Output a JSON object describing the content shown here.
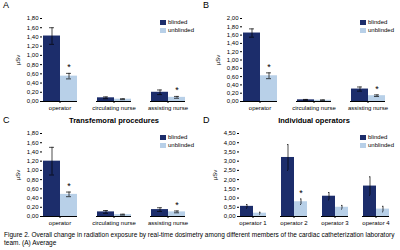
{
  "chart_data": [
    {
      "type": "bar",
      "panel_label": "A",
      "categories": [
        "operator",
        "circulating nurse",
        "assisting nurse"
      ],
      "series": [
        {
          "name": "blinded",
          "color": "#1c2d6b",
          "values": [
            1.42,
            0.08,
            0.2
          ],
          "errors": [
            0.18,
            0.02,
            0.05
          ]
        },
        {
          "name": "unblinded",
          "color": "#b8d0e8",
          "values": [
            0.55,
            0.05,
            0.09
          ],
          "errors": [
            0.06,
            0.01,
            0.02
          ]
        }
      ],
      "annotations": [
        {
          "category": "operator",
          "series": "unblinded",
          "text": "*"
        },
        {
          "category": "assisting nurse",
          "series": "unblinded",
          "text": "*"
        }
      ],
      "ylabel": "μSv",
      "ylim": [
        0,
        1.8
      ],
      "yticks": [
        {
          "value": 0.0,
          "label": "0,00"
        },
        {
          "value": 0.2,
          "label": "0,20"
        },
        {
          "value": 0.4,
          "label": "0,40"
        },
        {
          "value": 0.6,
          "label": "0,60"
        },
        {
          "value": 0.8,
          "label": "0,80"
        },
        {
          "value": 1.0,
          "label": "1,00"
        },
        {
          "value": 1.2,
          "label": "1,20"
        },
        {
          "value": 1.4,
          "label": "1,40"
        },
        {
          "value": 1.6,
          "label": "1,60"
        },
        {
          "value": 1.8,
          "label": "1,80"
        }
      ],
      "legend": "upper right"
    },
    {
      "type": "bar",
      "panel_label": "B",
      "categories": [
        "operator",
        "circulating nurse",
        "assisting nurse"
      ],
      "series": [
        {
          "name": "blinded",
          "color": "#1c2d6b",
          "values": [
            1.65,
            0.04,
            0.3
          ],
          "errors": [
            0.1,
            0.01,
            0.05
          ]
        },
        {
          "name": "unblinded",
          "color": "#b8d0e8",
          "values": [
            0.62,
            0.03,
            0.14
          ],
          "errors": [
            0.07,
            0.01,
            0.02
          ]
        }
      ],
      "annotations": [
        {
          "category": "operator",
          "series": "unblinded",
          "text": "*"
        },
        {
          "category": "assisting nurse",
          "series": "unblinded",
          "text": "*"
        }
      ],
      "ylabel": "μSv",
      "ylim": [
        0,
        2.0
      ],
      "yticks": [
        {
          "value": 0.0,
          "label": "0,00"
        },
        {
          "value": 0.2,
          "label": "0,20"
        },
        {
          "value": 0.4,
          "label": "0,40"
        },
        {
          "value": 0.6,
          "label": "0,60"
        },
        {
          "value": 0.8,
          "label": "0,80"
        },
        {
          "value": 1.0,
          "label": "1,00"
        },
        {
          "value": 1.2,
          "label": "1,20"
        },
        {
          "value": 1.4,
          "label": "1,40"
        },
        {
          "value": 1.6,
          "label": "1,60"
        },
        {
          "value": 1.8,
          "label": "1,80"
        },
        {
          "value": 2.0,
          "label": "2,00"
        }
      ],
      "legend": "upper right"
    },
    {
      "type": "bar",
      "panel_label": "C",
      "title": "Transfemoral procedures",
      "categories": [
        "operator",
        "circulating nurse",
        "assisting nurse"
      ],
      "series": [
        {
          "name": "blinded",
          "color": "#1c2d6b",
          "values": [
            1.2,
            0.1,
            0.15
          ],
          "errors": [
            0.3,
            0.03,
            0.04
          ]
        },
        {
          "name": "unblinded",
          "color": "#b8d0e8",
          "values": [
            0.48,
            0.04,
            0.1
          ],
          "errors": [
            0.05,
            0.01,
            0.02
          ]
        }
      ],
      "annotations": [
        {
          "category": "operator",
          "series": "unblinded",
          "text": "*"
        },
        {
          "category": "assisting nurse",
          "series": "unblinded",
          "text": "*"
        }
      ],
      "ylabel": "μSv",
      "ylim": [
        0,
        1.8
      ],
      "yticks": [
        {
          "value": 0.0,
          "label": "0,00"
        },
        {
          "value": 0.2,
          "label": "0,20"
        },
        {
          "value": 0.4,
          "label": "0,40"
        },
        {
          "value": 0.6,
          "label": "0,60"
        },
        {
          "value": 0.8,
          "label": "0,80"
        },
        {
          "value": 1.0,
          "label": "1,00"
        },
        {
          "value": 1.2,
          "label": "1,20"
        },
        {
          "value": 1.4,
          "label": "1,40"
        },
        {
          "value": 1.6,
          "label": "1,60"
        },
        {
          "value": 1.8,
          "label": "1,80"
        }
      ],
      "legend": "upper right"
    },
    {
      "type": "bar",
      "panel_label": "D",
      "title": "Individual operators",
      "categories": [
        "operator 1",
        "operator 2",
        "operator 3",
        "operator 4"
      ],
      "series": [
        {
          "name": "blinded",
          "color": "#1c2d6b",
          "values": [
            0.55,
            3.2,
            1.1,
            1.65
          ],
          "errors": [
            0.1,
            0.7,
            0.2,
            0.5
          ]
        },
        {
          "name": "unblinded",
          "color": "#b8d0e8",
          "values": [
            0.18,
            0.8,
            0.5,
            0.4
          ],
          "errors": [
            0.05,
            0.15,
            0.1,
            0.15
          ]
        }
      ],
      "annotations": [
        {
          "category": "operator 2",
          "series": "unblinded",
          "text": "*"
        }
      ],
      "ylabel": "μSv",
      "ylim": [
        0,
        4.5
      ],
      "yticks": [
        {
          "value": 0.0,
          "label": "0,00"
        },
        {
          "value": 0.5,
          "label": "0,50"
        },
        {
          "value": 1.0,
          "label": "1,00"
        },
        {
          "value": 1.5,
          "label": "1,50"
        },
        {
          "value": 2.0,
          "label": "2,00"
        },
        {
          "value": 2.5,
          "label": "2,50"
        },
        {
          "value": 3.0,
          "label": "3,00"
        },
        {
          "value": 3.5,
          "label": "3,50"
        },
        {
          "value": 4.0,
          "label": "4,00"
        },
        {
          "value": 4.5,
          "label": "4,50"
        }
      ],
      "legend": "upper right"
    }
  ],
  "caption": "Figure 2. Overall change in radiation exposure by real-time dosimetry among different members of the cardiac catheterization laboratory team. (A) Average"
}
